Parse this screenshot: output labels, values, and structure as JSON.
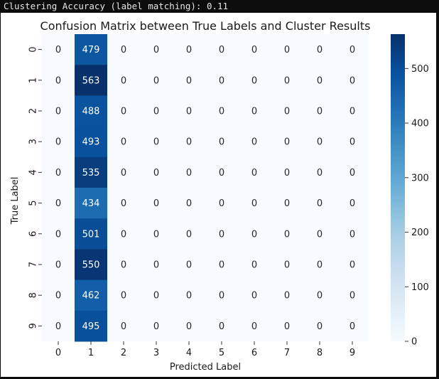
{
  "console": {
    "output_line": "Clustering Accuracy (label matching): 0.11"
  },
  "chart_data": {
    "type": "heatmap",
    "title": "Confusion Matrix between True Labels and Cluster Results",
    "xlabel": "Predicted Label",
    "ylabel": "True Label",
    "x_categories": [
      "0",
      "1",
      "2",
      "3",
      "4",
      "5",
      "6",
      "7",
      "8",
      "9"
    ],
    "y_categories": [
      "0",
      "1",
      "2",
      "3",
      "4",
      "5",
      "6",
      "7",
      "8",
      "9"
    ],
    "values": [
      [
        0,
        479,
        0,
        0,
        0,
        0,
        0,
        0,
        0,
        0
      ],
      [
        0,
        563,
        0,
        0,
        0,
        0,
        0,
        0,
        0,
        0
      ],
      [
        0,
        488,
        0,
        0,
        0,
        0,
        0,
        0,
        0,
        0
      ],
      [
        0,
        493,
        0,
        0,
        0,
        0,
        0,
        0,
        0,
        0
      ],
      [
        0,
        535,
        0,
        0,
        0,
        0,
        0,
        0,
        0,
        0
      ],
      [
        0,
        434,
        0,
        0,
        0,
        0,
        0,
        0,
        0,
        0
      ],
      [
        0,
        501,
        0,
        0,
        0,
        0,
        0,
        0,
        0,
        0
      ],
      [
        0,
        550,
        0,
        0,
        0,
        0,
        0,
        0,
        0,
        0
      ],
      [
        0,
        462,
        0,
        0,
        0,
        0,
        0,
        0,
        0,
        0
      ],
      [
        0,
        495,
        0,
        0,
        0,
        0,
        0,
        0,
        0,
        0
      ]
    ],
    "colormap": "Blues",
    "colorbar": {
      "range": [
        0,
        563
      ],
      "ticks": [
        0,
        100,
        200,
        300,
        400,
        500
      ]
    },
    "annotations": true,
    "colors": {
      "low": "#f7fbff",
      "high": "#08306b",
      "text_dark": "#262626",
      "text_light": "#ffffff"
    }
  }
}
